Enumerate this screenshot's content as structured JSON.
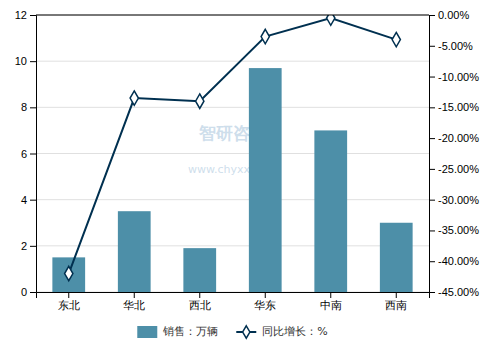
{
  "chart_data": {
    "type": "bar",
    "categories": [
      "东北",
      "华北",
      "西北",
      "华东",
      "中南",
      "西南"
    ],
    "series": [
      {
        "name": "销售：万辆",
        "type": "bar",
        "color": "#4d8fa8",
        "values": [
          1.5,
          3.5,
          1.9,
          9.7,
          7.0,
          3.0
        ]
      },
      {
        "name": "同比增长：%",
        "type": "line",
        "color": "#003050",
        "marker": "diamond",
        "axis": "y2",
        "values": [
          -42.0,
          -13.5,
          -14.0,
          -3.5,
          -0.5,
          -4.0
        ]
      }
    ],
    "ylim": [
      0,
      12
    ],
    "yticks": [
      0,
      2,
      4,
      6,
      8,
      10,
      12
    ],
    "y2lim": [
      -45.0,
      0.0
    ],
    "y2ticks": [
      {
        "value": 0.0,
        "label": "0.00%"
      },
      {
        "value": -5.0,
        "label": "-5.00%"
      },
      {
        "value": -10.0,
        "label": "-10.00%"
      },
      {
        "value": -15.0,
        "label": "-15.00%"
      },
      {
        "value": -20.0,
        "label": "-20.00%"
      },
      {
        "value": -25.0,
        "label": "-25.00%"
      },
      {
        "value": -30.0,
        "label": "-30.00%"
      },
      {
        "value": -35.0,
        "label": "-35.00%"
      },
      {
        "value": -40.0,
        "label": "-40.00%"
      },
      {
        "value": -45.0,
        "label": "-45.00%"
      }
    ],
    "grid": true,
    "legend": "bottom",
    "annotations": [
      "智研咨询",
      "www.chyxx.com"
    ]
  }
}
